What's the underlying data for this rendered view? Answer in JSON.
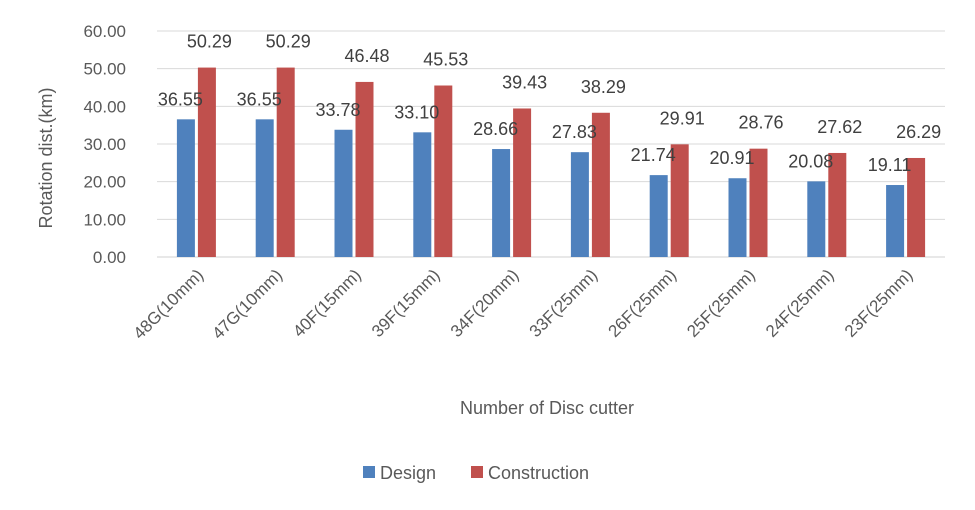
{
  "chart_data": {
    "type": "bar",
    "title": "",
    "xlabel": "Number  of Disc cutter",
    "ylabel": "Rotation dist.(km)",
    "ylim": [
      0,
      60
    ],
    "yticks": [
      "0.00",
      "10.00",
      "20.00",
      "30.00",
      "40.00",
      "50.00",
      "60.00"
    ],
    "grid": true,
    "legend_position": "bottom",
    "categories": [
      "48G(10mm)",
      "47G(10mm)",
      "40F(15mm)",
      "39F(15mm)",
      "34F(20mm)",
      "33F(25mm)",
      "26F(25mm)",
      "25F(25mm)",
      "24F(25mm)",
      "23F(25mm)"
    ],
    "series": [
      {
        "name": "Design",
        "color": "#4f81bd",
        "values": [
          36.55,
          36.55,
          33.78,
          33.1,
          28.66,
          27.83,
          21.74,
          20.91,
          20.08,
          19.11
        ],
        "labels": [
          "36.55",
          "36.55",
          "33.78",
          "33.10",
          "28.66",
          "27.83",
          "21.74",
          "20.91",
          "20.08",
          "19.11"
        ]
      },
      {
        "name": "Construction",
        "color": "#c0504d",
        "values": [
          50.29,
          50.29,
          46.48,
          45.53,
          39.43,
          38.29,
          29.91,
          28.76,
          27.62,
          26.29
        ],
        "labels": [
          "50.29",
          "50.29",
          "46.48",
          "45.53",
          "39.43",
          "38.29",
          "29.91",
          "28.76",
          "27.62",
          "26.29"
        ]
      }
    ]
  }
}
